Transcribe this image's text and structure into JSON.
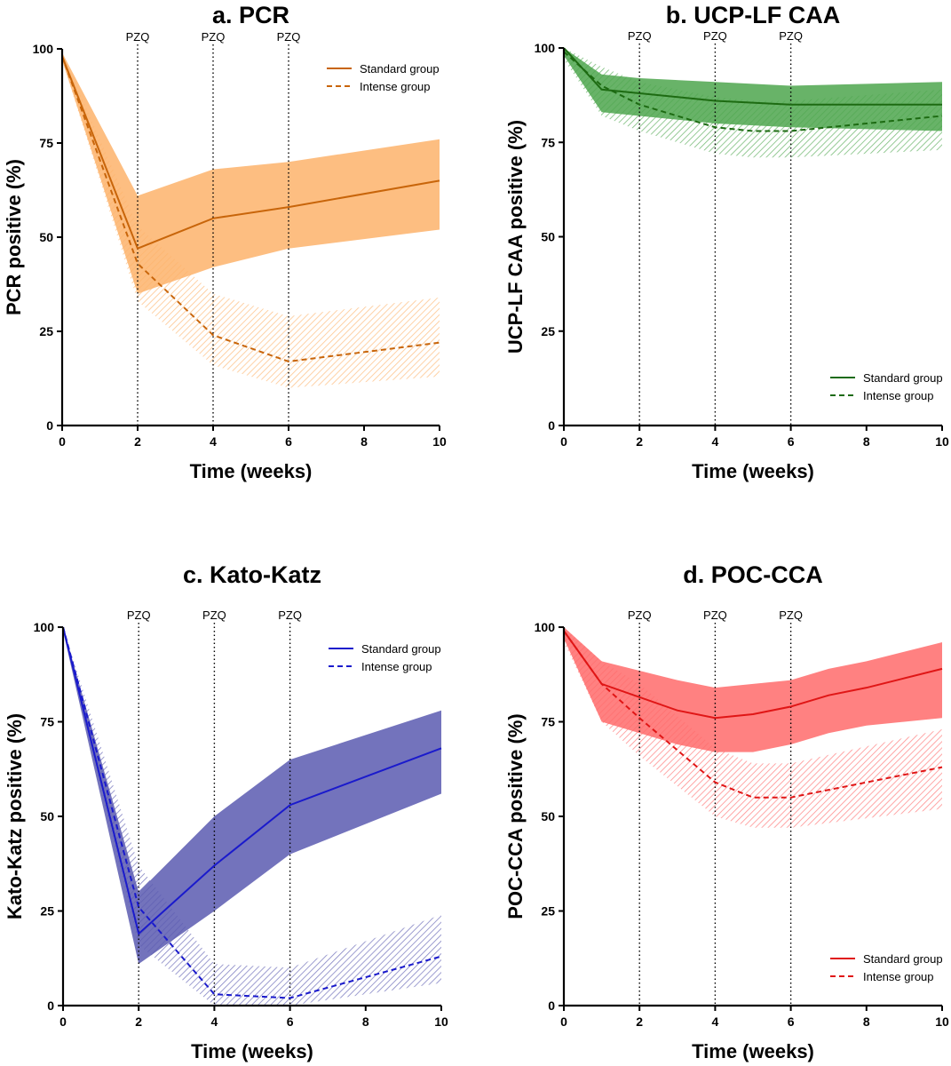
{
  "chart_data": [
    {
      "type": "line",
      "title": "a. PCR",
      "xlabel": "Time (weeks)",
      "ylabel": "PCR positive (%)",
      "xlim": [
        0,
        10
      ],
      "ylim": [
        0,
        100
      ],
      "xticks": [
        0,
        2,
        4,
        6,
        8,
        10
      ],
      "yticks": [
        0,
        25,
        50,
        75,
        100
      ],
      "legend_position": "top-right",
      "color": "#c8650a",
      "band_color": "#fdb36b",
      "annotations": [
        {
          "x": 2,
          "label": "PZQ"
        },
        {
          "x": 4,
          "label": "PZQ"
        },
        {
          "x": 6,
          "label": "PZQ"
        }
      ],
      "series": [
        {
          "name": "Standard group",
          "style": "solid",
          "x": [
            0,
            2,
            4,
            6,
            10
          ],
          "values": [
            98,
            47,
            55,
            58,
            65
          ],
          "lower": [
            97,
            35,
            42,
            47,
            52
          ],
          "upper": [
            99,
            61,
            68,
            70,
            76
          ]
        },
        {
          "name": "Intense group",
          "style": "dashed",
          "x": [
            0,
            2,
            4,
            6,
            10
          ],
          "values": [
            98,
            43,
            24,
            17,
            22
          ],
          "lower": [
            97,
            33,
            16,
            10,
            13
          ],
          "upper": [
            99,
            53,
            35,
            29,
            34
          ]
        }
      ]
    },
    {
      "type": "line",
      "title": "b. UCP-LF CAA",
      "xlabel": "Time (weeks)",
      "ylabel": "UCP-LF CAA positive (%)",
      "xlim": [
        0,
        10
      ],
      "ylim": [
        0,
        100
      ],
      "xticks": [
        0,
        2,
        4,
        6,
        8,
        10
      ],
      "yticks": [
        0,
        25,
        50,
        75,
        100
      ],
      "legend_position": "bottom-right",
      "color": "#1d6b12",
      "band_color": "#4ea64e",
      "annotations": [
        {
          "x": 2,
          "label": "PZQ"
        },
        {
          "x": 4,
          "label": "PZQ"
        },
        {
          "x": 6,
          "label": "PZQ"
        }
      ],
      "series": [
        {
          "name": "Standard group",
          "style": "solid",
          "x": [
            0,
            1,
            2,
            4,
            6,
            10
          ],
          "values": [
            100,
            89,
            88,
            86,
            85,
            85
          ],
          "lower": [
            98,
            83,
            82,
            80,
            79,
            78
          ],
          "upper": [
            100,
            93,
            92,
            91,
            90,
            91
          ]
        },
        {
          "name": "Intense group",
          "style": "dashed",
          "x": [
            0,
            1,
            2,
            4,
            5,
            6,
            10
          ],
          "values": [
            99,
            90,
            85,
            79,
            78,
            78,
            82
          ],
          "lower": [
            97,
            82,
            78,
            72,
            71,
            71,
            73
          ],
          "upper": [
            100,
            95,
            91,
            87,
            86,
            86,
            89
          ]
        }
      ]
    },
    {
      "type": "line",
      "title": "c. Kato-Katz",
      "xlabel": "Time (weeks)",
      "ylabel": "Kato-Katz positive (%)",
      "xlim": [
        0,
        10
      ],
      "ylim": [
        0,
        100
      ],
      "xticks": [
        0,
        2,
        4,
        6,
        8,
        10
      ],
      "yticks": [
        0,
        25,
        50,
        75,
        100
      ],
      "legend_position": "top-right",
      "color": "#1a1acc",
      "band_color": "#5a5ab0",
      "annotations": [
        {
          "x": 2,
          "label": "PZQ"
        },
        {
          "x": 4,
          "label": "PZQ"
        },
        {
          "x": 6,
          "label": "PZQ"
        }
      ],
      "series": [
        {
          "name": "Standard group",
          "style": "solid",
          "x": [
            0,
            2,
            4,
            6,
            10
          ],
          "values": [
            100,
            19,
            37,
            53,
            68
          ],
          "lower": [
            99,
            11,
            25,
            40,
            56
          ],
          "upper": [
            100,
            30,
            50,
            65,
            78
          ]
        },
        {
          "name": "Intense group",
          "style": "dashed",
          "x": [
            0,
            2,
            4,
            6,
            10
          ],
          "values": [
            100,
            26,
            3,
            2,
            13
          ],
          "lower": [
            99,
            16,
            0,
            0,
            6
          ],
          "upper": [
            100,
            37,
            11,
            10,
            24
          ]
        }
      ]
    },
    {
      "type": "line",
      "title": "d. POC-CCA",
      "xlabel": "Time (weeks)",
      "ylabel": "POC-CCA positive (%)",
      "xlim": [
        0,
        10
      ],
      "ylim": [
        0,
        100
      ],
      "xticks": [
        0,
        2,
        4,
        6,
        8,
        10
      ],
      "yticks": [
        0,
        25,
        50,
        75,
        100
      ],
      "legend_position": "bottom-right",
      "color": "#e01616",
      "band_color": "#ff6b6b",
      "annotations": [
        {
          "x": 2,
          "label": "PZQ"
        },
        {
          "x": 4,
          "label": "PZQ"
        },
        {
          "x": 6,
          "label": "PZQ"
        }
      ],
      "series": [
        {
          "name": "Standard group",
          "style": "solid",
          "x": [
            0,
            1,
            3,
            4,
            5,
            6,
            7,
            8,
            10
          ],
          "values": [
            99,
            85,
            78,
            76,
            77,
            79,
            82,
            84,
            89
          ],
          "lower": [
            97,
            75,
            69,
            67,
            67,
            69,
            72,
            74,
            76
          ],
          "upper": [
            100,
            91,
            86,
            84,
            85,
            86,
            89,
            91,
            96
          ]
        },
        {
          "name": "Intense group",
          "style": "dashed",
          "x": [
            0,
            1,
            2,
            4,
            5,
            6,
            10
          ],
          "values": [
            99,
            85,
            76,
            59,
            55,
            55,
            63
          ],
          "lower": [
            96,
            75,
            66,
            50,
            47,
            47,
            52
          ],
          "upper": [
            100,
            91,
            85,
            68,
            64,
            64,
            73
          ]
        }
      ]
    }
  ]
}
